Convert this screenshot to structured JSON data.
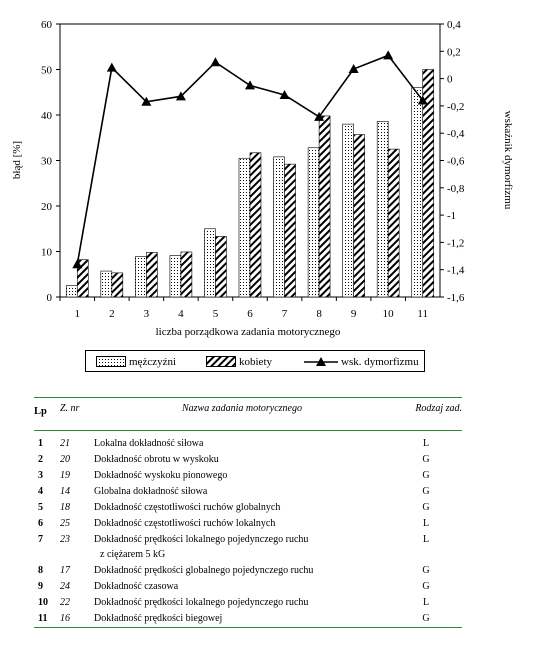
{
  "chart_data": {
    "type": "bar+line",
    "categories": [
      "1",
      "2",
      "3",
      "4",
      "5",
      "6",
      "7",
      "8",
      "9",
      "10",
      "11"
    ],
    "series": [
      {
        "name": "mężczyźni",
        "axis": "left",
        "values": [
          2.5,
          5.7,
          8.9,
          9.1,
          15.0,
          30.5,
          30.8,
          32.8,
          38.0,
          38.6,
          46.0
        ]
      },
      {
        "name": "kobiety",
        "axis": "left",
        "values": [
          8.2,
          5.3,
          9.8,
          9.9,
          13.3,
          31.7,
          29.2,
          39.8,
          35.7,
          32.5,
          50.0
        ]
      },
      {
        "name": "wsk. dymorfizmu",
        "axis": "right",
        "values": [
          -1.36,
          0.08,
          -0.17,
          -0.13,
          0.12,
          -0.05,
          -0.12,
          -0.28,
          0.07,
          0.17,
          -0.16
        ]
      }
    ],
    "xlabel": "liczba porządkowa zadania motorycznego",
    "ylabel": "błąd [%]",
    "y2label": "wskaźnik dymorfizmu",
    "ylim": [
      0,
      60
    ],
    "y2lim": [
      -1.6,
      0.4
    ],
    "yticks": [
      "0",
      "10",
      "20",
      "30",
      "40",
      "50",
      "60"
    ],
    "y2ticks": [
      "-1,6",
      "-1,4",
      "-1,2",
      "-1",
      "-0,8",
      "-0,6",
      "-0,4",
      "-0,2",
      "0",
      "0,2",
      "0,4"
    ],
    "legend_position": "bottom"
  },
  "legend": {
    "men": "mężczyźni",
    "women": "kobiety",
    "dimorphism": "wsk. dymorfizmu"
  },
  "table": {
    "headers": {
      "lp": "Lp",
      "nr": "Z. nr",
      "name": "Nazwa zadania motorycznego",
      "type": "Rodzaj zad."
    },
    "rows": [
      {
        "lp": "1",
        "nr": "21",
        "name": "Lokalna dokładność siłowa",
        "name2": "",
        "type": "L"
      },
      {
        "lp": "2",
        "nr": "20",
        "name": "Dokładność obrotu w wyskoku",
        "name2": "",
        "type": "G"
      },
      {
        "lp": "3",
        "nr": "19",
        "name": "Dokładność wyskoku pionowego",
        "name2": "",
        "type": "G"
      },
      {
        "lp": "4",
        "nr": "14",
        "name": "Globalna dokładność siłowa",
        "name2": "",
        "type": "G"
      },
      {
        "lp": "5",
        "nr": "18",
        "name": "Dokładność częstotliwości ruchów globalnych",
        "name2": "",
        "type": "G"
      },
      {
        "lp": "6",
        "nr": "25",
        "name": "Dokładność częstotliwości ruchów lokalnych",
        "name2": "",
        "type": "L"
      },
      {
        "lp": "7",
        "nr": "23",
        "name": "Dokładność prędkości lokalnego pojedynczego ruchu",
        "name2": "z ciężarem 5 kG",
        "type": "L"
      },
      {
        "lp": "8",
        "nr": "17",
        "name": "Dokładność prędkości globalnego pojedynczego ruchu",
        "name2": "",
        "type": "G"
      },
      {
        "lp": "9",
        "nr": "24",
        "name": "Dokładność czasowa",
        "name2": "",
        "type": "G"
      },
      {
        "lp": "10",
        "nr": "22",
        "name": "Dokładność prędkości lokalnego pojedynczego ruchu",
        "name2": "",
        "type": "L"
      },
      {
        "lp": "11",
        "nr": "16",
        "name": "Dokładność prędkości biegowej",
        "name2": "",
        "type": "G"
      }
    ]
  }
}
